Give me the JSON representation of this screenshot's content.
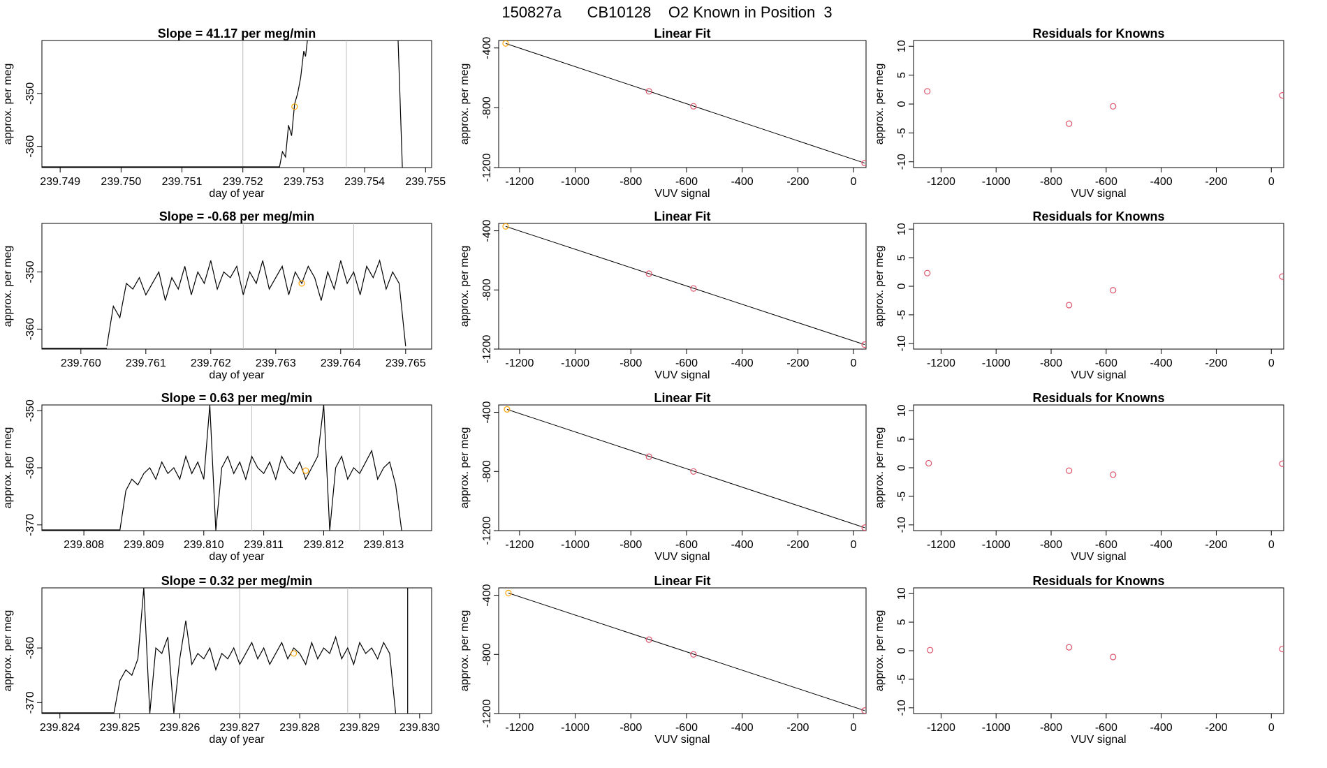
{
  "suptitle": "150827a      CB10128    O2 Known in Position  3",
  "colors": {
    "trace": "#000000",
    "marker": "#FFA500",
    "residual": "#DF536B",
    "vline": "#BEBEBE",
    "fit": "#000000"
  },
  "chart_data": [
    {
      "type": "line",
      "title": "Slope =  41.17  per meg/min",
      "xlabel": "day of year",
      "ylabel": "approx. per meg",
      "xlim": [
        239.7487,
        239.7551
      ],
      "ylim": [
        -364,
        -340
      ],
      "xticks": [
        "239.749",
        "239.750",
        "239.751",
        "239.752",
        "239.753",
        "239.754",
        "239.755"
      ],
      "yticks": [
        "-350",
        "-360"
      ],
      "vlines": [
        239.752,
        239.7537
      ],
      "series": [
        {
          "x": [
            239.7526,
            239.75265,
            239.7527,
            239.75275,
            239.7528,
            239.75285,
            239.7529,
            239.75295,
            239.753,
            239.75303,
            239.75306
          ],
          "y": [
            -364,
            -361,
            -362,
            -356,
            -358,
            -352,
            -350,
            -347,
            -342,
            -343,
            -340
          ]
        },
        {
          "x": [
            239.75455,
            239.75462
          ],
          "y": [
            -340,
            -364
          ]
        }
      ],
      "marker": {
        "x": 239.75285,
        "y": -352.5
      }
    },
    {
      "type": "line",
      "title": "Slope =  -0.68  per meg/min",
      "xlabel": "day of year",
      "ylabel": "approx. per meg",
      "xlim": [
        239.7594,
        239.7654
      ],
      "ylim": [
        -363.5,
        -341.5
      ],
      "xticks": [
        "239.760",
        "239.761",
        "239.762",
        "239.763",
        "239.764",
        "239.765"
      ],
      "yticks": [
        "-350",
        "-360"
      ],
      "vlines": [
        239.7625,
        239.7642
      ],
      "series": [
        {
          "x": [
            239.7604,
            239.7605,
            239.7606,
            239.7607,
            239.7608,
            239.7609,
            239.761,
            239.7611,
            239.7612,
            239.7613,
            239.7614,
            239.7615,
            239.7616,
            239.7617,
            239.7618,
            239.7619,
            239.762,
            239.7621,
            239.7622,
            239.7623,
            239.7624,
            239.7625,
            239.7626,
            239.7627,
            239.7628,
            239.7629,
            239.763,
            239.7631,
            239.7632,
            239.7633,
            239.7634,
            239.7635,
            239.7636,
            239.7637,
            239.7638,
            239.7639,
            239.764,
            239.7641,
            239.7642,
            239.7643,
            239.7644,
            239.7645,
            239.7646,
            239.7647,
            239.7648,
            239.7649,
            239.765
          ],
          "y": [
            -363,
            -356,
            -358,
            -352,
            -353,
            -351,
            -354,
            -352,
            -350,
            -355,
            -351,
            -353,
            -349,
            -354,
            -350,
            -352,
            -348,
            -353,
            -350,
            -351,
            -349,
            -354,
            -350,
            -352,
            -348,
            -353,
            -351,
            -349,
            -354,
            -350,
            -352,
            -349,
            -351,
            -355,
            -350,
            -353,
            -348,
            -352,
            -350,
            -354,
            -349,
            -351,
            -348,
            -353,
            -350,
            -352,
            -363
          ]
        }
      ],
      "marker": {
        "x": 239.7634,
        "y": -352
      }
    },
    {
      "type": "line",
      "title": "Slope =  0.63  per meg/min",
      "xlabel": "day of year",
      "ylabel": "approx. per meg",
      "xlim": [
        239.8073,
        239.8138
      ],
      "ylim": [
        -371,
        -349
      ],
      "xticks": [
        "239.808",
        "239.809",
        "239.810",
        "239.811",
        "239.812",
        "239.813"
      ],
      "yticks": [
        "-350",
        "-360",
        "-370"
      ],
      "vlines": [
        239.8108,
        239.8126
      ],
      "series": [
        {
          "x": [
            239.8086,
            239.8087,
            239.8088,
            239.8089,
            239.809,
            239.8091,
            239.8092,
            239.8093,
            239.8094,
            239.8095,
            239.8096,
            239.8097,
            239.8098,
            239.8099,
            239.81,
            239.8101,
            239.8102,
            239.8103,
            239.8104,
            239.8105,
            239.8106,
            239.8107,
            239.8108,
            239.8109,
            239.811,
            239.8111,
            239.8112,
            239.8113,
            239.8114,
            239.8115,
            239.8116,
            239.8117,
            239.8118,
            239.8119,
            239.812,
            239.8121,
            239.8122,
            239.8123,
            239.8124,
            239.8125,
            239.8126,
            239.8127,
            239.8128,
            239.8129,
            239.813,
            239.8131,
            239.8132,
            239.8133
          ],
          "y": [
            -371,
            -364,
            -362,
            -363,
            -361,
            -360,
            -362,
            -359,
            -361,
            -360,
            -362,
            -358,
            -361,
            -359,
            -362,
            -349,
            -371,
            -360,
            -358,
            -361,
            -359,
            -362,
            -358,
            -360,
            -361,
            -359,
            -362,
            -358,
            -360,
            -361,
            -359,
            -362,
            -360,
            -358,
            -349,
            -371,
            -360,
            -358,
            -362,
            -360,
            -361,
            -359,
            -357,
            -362,
            -360,
            -359,
            -363,
            -371
          ]
        }
      ],
      "marker": {
        "x": 239.8117,
        "y": -360.5
      }
    },
    {
      "type": "line",
      "title": "Slope =  0.32  per meg/min",
      "xlabel": "day of year",
      "ylabel": "approx. per meg",
      "xlim": [
        239.8237,
        239.8302
      ],
      "ylim": [
        -372,
        -349
      ],
      "xticks": [
        "239.824",
        "239.825",
        "239.826",
        "239.827",
        "239.828",
        "239.829",
        "239.830"
      ],
      "yticks": [
        "-360",
        "-370"
      ],
      "vlines": [
        239.827,
        239.8288
      ],
      "series": [
        {
          "x": [
            239.8249,
            239.825,
            239.8251,
            239.8252,
            239.8253,
            239.8254,
            239.8255,
            239.8256,
            239.8257,
            239.8258,
            239.8259,
            239.826,
            239.8261,
            239.8262,
            239.8263,
            239.8264,
            239.8265,
            239.8266,
            239.8267,
            239.8268,
            239.8269,
            239.827,
            239.8271,
            239.8272,
            239.8273,
            239.8274,
            239.8275,
            239.8276,
            239.8277,
            239.8278,
            239.8279,
            239.828,
            239.8281,
            239.8282,
            239.8283,
            239.8284,
            239.8285,
            239.8286,
            239.8287,
            239.8288,
            239.8289,
            239.829,
            239.8291,
            239.8292,
            239.8293,
            239.8294,
            239.8295,
            239.8296
          ],
          "y": [
            -372,
            -366,
            -364,
            -365,
            -362,
            -349,
            -372,
            -360,
            -361,
            -358,
            -372,
            -362,
            -355,
            -363,
            -361,
            -362,
            -360,
            -364,
            -361,
            -362,
            -360,
            -363,
            -361,
            -359,
            -362,
            -360,
            -363,
            -361,
            -359,
            -362,
            -360,
            -361,
            -363,
            -359,
            -362,
            -360,
            -361,
            -358,
            -362,
            -360,
            -363,
            -359,
            -361,
            -360,
            -362,
            -359,
            -361,
            -372
          ]
        },
        {
          "x": [
            239.8298,
            239.8298
          ],
          "y": [
            -349,
            -372
          ]
        }
      ],
      "marker": {
        "x": 239.8279,
        "y": -361
      }
    },
    {
      "type": "scatter",
      "title": "Linear Fit",
      "xlabel": "VUV signal",
      "ylabel": "approx. per meg",
      "xlim": [
        -1275,
        45
      ],
      "ylim": [
        -1200,
        -350
      ],
      "xticks": [
        -1200,
        -1000,
        -800,
        -600,
        -400,
        -200,
        0
      ],
      "yticks": [
        -400,
        -800,
        -1200
      ],
      "x": [
        -1250,
        -735,
        -575,
        40
      ],
      "y": [
        -370,
        -690,
        -790,
        -1170
      ],
      "fit": {
        "x": [
          -1250,
          40
        ],
        "y": [
          -370,
          -1170
        ]
      }
    },
    {
      "type": "scatter",
      "title": "Linear Fit",
      "xlabel": "VUV signal",
      "ylabel": "approx. per meg",
      "xlim": [
        -1275,
        45
      ],
      "ylim": [
        -1200,
        -350
      ],
      "xticks": [
        -1200,
        -1000,
        -800,
        -600,
        -400,
        -200,
        0
      ],
      "yticks": [
        -400,
        -800,
        -1200
      ],
      "x": [
        -1250,
        -735,
        -575,
        40
      ],
      "y": [
        -370,
        -690,
        -790,
        -1170
      ],
      "fit": {
        "x": [
          -1250,
          40
        ],
        "y": [
          -370,
          -1170
        ]
      }
    },
    {
      "type": "scatter",
      "title": "Linear Fit",
      "xlabel": "VUV signal",
      "ylabel": "approx. per meg",
      "xlim": [
        -1275,
        45
      ],
      "ylim": [
        -1200,
        -350
      ],
      "xticks": [
        -1200,
        -1000,
        -800,
        -600,
        -400,
        -200,
        0
      ],
      "yticks": [
        -400,
        -800,
        -1200
      ],
      "x": [
        -1245,
        -735,
        -575,
        40
      ],
      "y": [
        -380,
        -700,
        -800,
        -1180
      ],
      "fit": {
        "x": [
          -1245,
          40
        ],
        "y": [
          -380,
          -1180
        ]
      }
    },
    {
      "type": "scatter",
      "title": "Linear Fit",
      "xlabel": "VUV signal",
      "ylabel": "approx. per meg",
      "xlim": [
        -1275,
        45
      ],
      "ylim": [
        -1200,
        -350
      ],
      "xticks": [
        -1200,
        -1000,
        -800,
        -600,
        -400,
        -200,
        0
      ],
      "yticks": [
        -400,
        -800,
        -1200
      ],
      "x": [
        -1240,
        -735,
        -575,
        40
      ],
      "y": [
        -385,
        -700,
        -800,
        -1180
      ],
      "fit": {
        "x": [
          -1240,
          40
        ],
        "y": [
          -385,
          -1180
        ]
      }
    },
    {
      "type": "scatter",
      "title": "Residuals for Knowns",
      "xlabel": "VUV signal",
      "ylabel": "approx. per meg",
      "xlim": [
        -1300,
        45
      ],
      "ylim": [
        -11,
        11
      ],
      "xticks": [
        -1200,
        -1000,
        -800,
        -600,
        -400,
        -200,
        0
      ],
      "yticks": [
        10,
        5,
        0,
        -5,
        -10
      ],
      "x": [
        -1250,
        -735,
        -575,
        40
      ],
      "y": [
        2.2,
        -3.4,
        -0.4,
        1.5
      ]
    },
    {
      "type": "scatter",
      "title": "Residuals for Knowns",
      "xlabel": "VUV signal",
      "ylabel": "approx. per meg",
      "xlim": [
        -1300,
        45
      ],
      "ylim": [
        -11,
        11
      ],
      "xticks": [
        -1200,
        -1000,
        -800,
        -600,
        -400,
        -200,
        0
      ],
      "yticks": [
        10,
        5,
        0,
        -5,
        -10
      ],
      "x": [
        -1250,
        -735,
        -575,
        40
      ],
      "y": [
        2.3,
        -3.3,
        -0.7,
        1.7
      ]
    },
    {
      "type": "scatter",
      "title": "Residuals for Knowns",
      "xlabel": "VUV signal",
      "ylabel": "approx. per meg",
      "xlim": [
        -1300,
        45
      ],
      "ylim": [
        -11,
        11
      ],
      "xticks": [
        -1200,
        -1000,
        -800,
        -600,
        -400,
        -200,
        0
      ],
      "yticks": [
        10,
        5,
        0,
        -5,
        -10
      ],
      "x": [
        -1245,
        -735,
        -575,
        40
      ],
      "y": [
        0.8,
        -0.5,
        -1.2,
        0.7
      ]
    },
    {
      "type": "scatter",
      "title": "Residuals for Knowns",
      "xlabel": "VUV signal",
      "ylabel": "approx. per meg",
      "xlim": [
        -1300,
        45
      ],
      "ylim": [
        -11,
        11
      ],
      "xticks": [
        -1200,
        -1000,
        -800,
        -600,
        -400,
        -200,
        0
      ],
      "yticks": [
        10,
        5,
        0,
        -5,
        -10
      ],
      "x": [
        -1240,
        -735,
        -575,
        40
      ],
      "y": [
        0.1,
        0.6,
        -1.1,
        0.3
      ]
    }
  ]
}
